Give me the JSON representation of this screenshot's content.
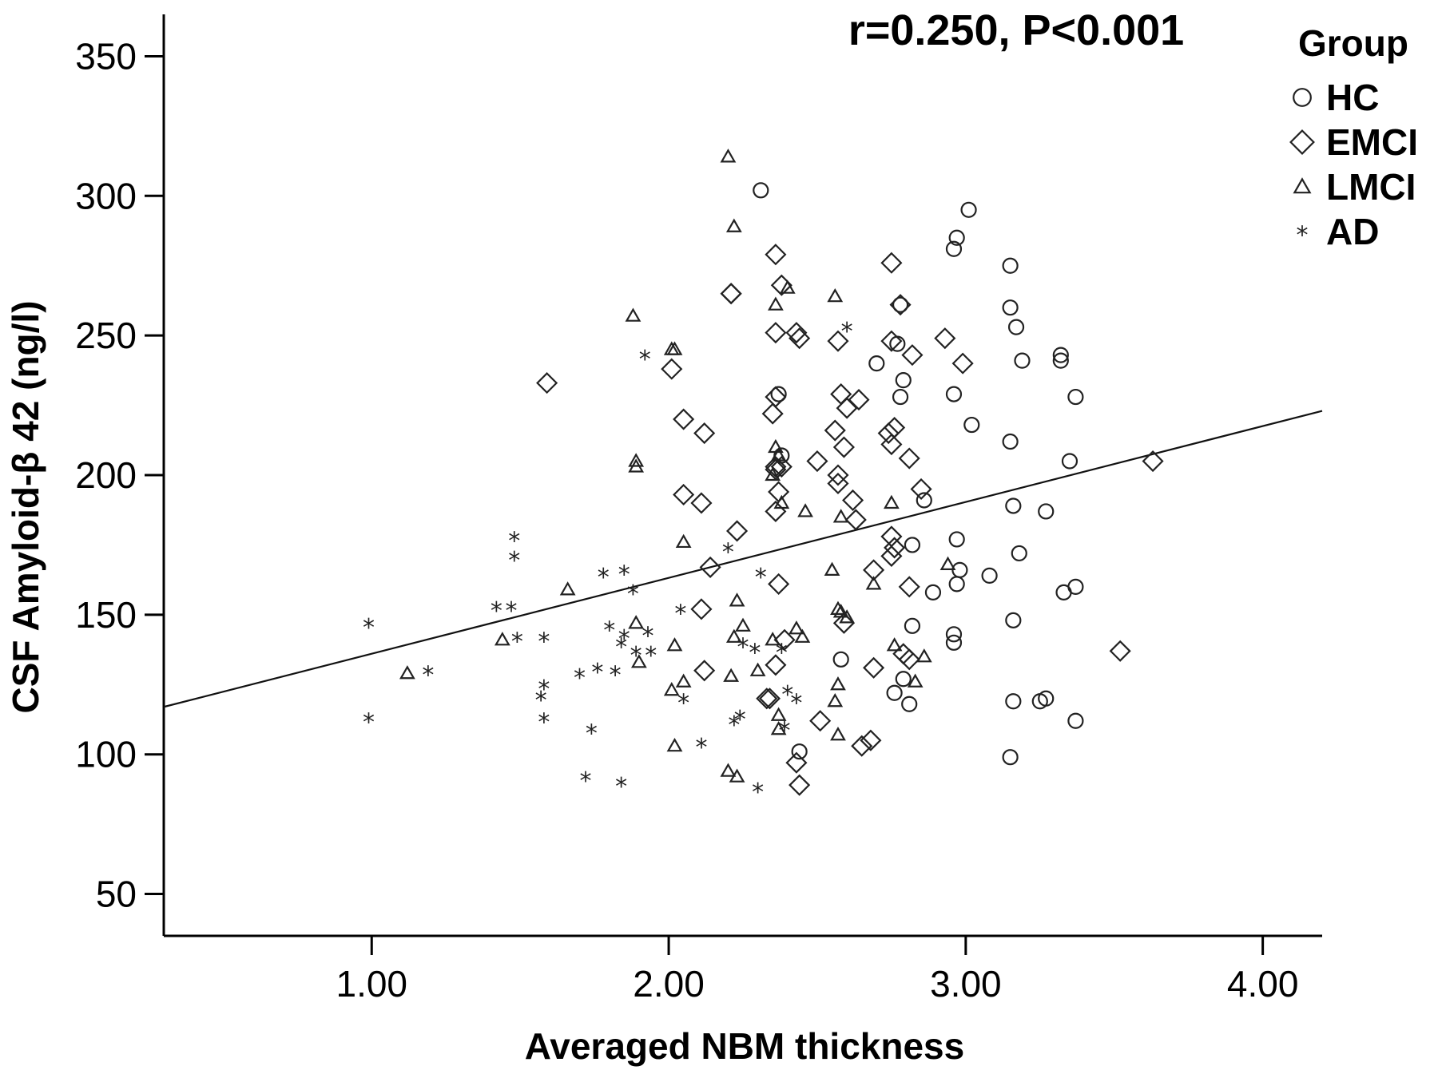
{
  "chart_data": {
    "type": "scatter",
    "title": "",
    "annotation": "r=0.250, P<0.001",
    "xlabel": "Averaged NBM thickness",
    "ylabel": "CSF Amyloid-β 42 (ng/l)",
    "xlim": [
      0.3,
      4.2
    ],
    "ylim": [
      35,
      365
    ],
    "xticks": [
      1.0,
      2.0,
      3.0,
      4.0
    ],
    "xtick_labels": [
      "1.00",
      "2.00",
      "3.00",
      "4.00"
    ],
    "yticks": [
      50,
      100,
      150,
      200,
      250,
      300,
      350
    ],
    "ytick_labels": [
      "50",
      "100",
      "150",
      "200",
      "250",
      "300",
      "350"
    ],
    "grid": false,
    "legend": {
      "title": "Group",
      "placement": "top-right"
    },
    "fit_line": {
      "x": [
        0.3,
        4.2
      ],
      "y": [
        117,
        223
      ]
    },
    "series": [
      {
        "name": "HC",
        "marker": "circle",
        "points": [
          [
            2.31,
            302
          ],
          [
            2.97,
            285
          ],
          [
            2.96,
            281
          ],
          [
            3.01,
            295
          ],
          [
            3.15,
            275
          ],
          [
            3.15,
            260
          ],
          [
            3.17,
            253
          ],
          [
            3.19,
            241
          ],
          [
            2.78,
            261
          ],
          [
            2.77,
            247
          ],
          [
            2.79,
            234
          ],
          [
            2.78,
            228
          ],
          [
            2.7,
            240
          ],
          [
            2.96,
            229
          ],
          [
            3.32,
            243
          ],
          [
            3.32,
            241
          ],
          [
            3.37,
            228
          ],
          [
            3.02,
            218
          ],
          [
            3.15,
            212
          ],
          [
            2.37,
            229
          ],
          [
            2.38,
            207
          ],
          [
            3.35,
            205
          ],
          [
            2.86,
            191
          ],
          [
            3.16,
            189
          ],
          [
            3.27,
            187
          ],
          [
            2.97,
            177
          ],
          [
            2.82,
            175
          ],
          [
            3.18,
            172
          ],
          [
            2.98,
            166
          ],
          [
            3.08,
            164
          ],
          [
            2.97,
            161
          ],
          [
            2.89,
            158
          ],
          [
            3.37,
            160
          ],
          [
            3.33,
            158
          ],
          [
            2.58,
            134
          ],
          [
            2.82,
            146
          ],
          [
            2.96,
            143
          ],
          [
            2.96,
            140
          ],
          [
            3.16,
            148
          ],
          [
            2.79,
            127
          ],
          [
            2.76,
            122
          ],
          [
            2.81,
            118
          ],
          [
            3.16,
            119
          ],
          [
            3.25,
            119
          ],
          [
            3.27,
            120
          ],
          [
            3.37,
            112
          ],
          [
            2.44,
            101
          ],
          [
            3.15,
            99
          ]
        ]
      },
      {
        "name": "EMCI",
        "marker": "diamond",
        "points": [
          [
            1.59,
            233
          ],
          [
            2.36,
            279
          ],
          [
            2.21,
            265
          ],
          [
            2.21,
            265
          ],
          [
            2.38,
            268
          ],
          [
            2.75,
            276
          ],
          [
            2.78,
            261
          ],
          [
            2.36,
            251
          ],
          [
            2.43,
            251
          ],
          [
            2.44,
            249
          ],
          [
            2.57,
            248
          ],
          [
            2.75,
            248
          ],
          [
            2.82,
            243
          ],
          [
            2.93,
            249
          ],
          [
            2.99,
            240
          ],
          [
            2.01,
            238
          ],
          [
            2.36,
            228
          ],
          [
            2.58,
            229
          ],
          [
            2.6,
            224
          ],
          [
            2.64,
            227
          ],
          [
            2.35,
            222
          ],
          [
            2.05,
            220
          ],
          [
            2.12,
            215
          ],
          [
            2.56,
            216
          ],
          [
            2.74,
            215
          ],
          [
            2.76,
            217
          ],
          [
            2.75,
            211
          ],
          [
            2.59,
            210
          ],
          [
            2.81,
            206
          ],
          [
            2.5,
            205
          ],
          [
            2.36,
            203
          ],
          [
            2.36,
            202
          ],
          [
            2.38,
            203
          ],
          [
            2.57,
            200
          ],
          [
            2.57,
            197
          ],
          [
            2.37,
            194
          ],
          [
            2.85,
            195
          ],
          [
            2.05,
            193
          ],
          [
            2.11,
            190
          ],
          [
            2.62,
            191
          ],
          [
            2.36,
            187
          ],
          [
            2.63,
            184
          ],
          [
            2.23,
            180
          ],
          [
            2.75,
            178
          ],
          [
            2.76,
            174
          ],
          [
            2.75,
            171
          ],
          [
            2.69,
            166
          ],
          [
            2.14,
            167
          ],
          [
            2.37,
            161
          ],
          [
            2.81,
            160
          ],
          [
            2.11,
            152
          ],
          [
            2.59,
            147
          ],
          [
            2.79,
            136
          ],
          [
            2.81,
            134
          ],
          [
            2.69,
            131
          ],
          [
            2.12,
            130
          ],
          [
            2.36,
            132
          ],
          [
            2.39,
            141
          ],
          [
            2.33,
            120
          ],
          [
            2.34,
            120
          ],
          [
            2.51,
            112
          ],
          [
            3.52,
            137
          ],
          [
            3.63,
            205
          ],
          [
            2.43,
            97
          ],
          [
            2.44,
            89
          ],
          [
            2.65,
            103
          ],
          [
            2.68,
            105
          ]
        ]
      },
      {
        "name": "LMCI",
        "marker": "triangle",
        "points": [
          [
            2.2,
            314
          ],
          [
            2.22,
            289
          ],
          [
            1.88,
            257
          ],
          [
            2.36,
            261
          ],
          [
            2.4,
            267
          ],
          [
            2.56,
            264
          ],
          [
            2.01,
            245
          ],
          [
            2.02,
            245
          ],
          [
            1.89,
            205
          ],
          [
            1.89,
            203
          ],
          [
            2.36,
            210
          ],
          [
            2.37,
            207
          ],
          [
            2.35,
            200
          ],
          [
            2.38,
            190
          ],
          [
            2.46,
            187
          ],
          [
            2.58,
            185
          ],
          [
            2.75,
            190
          ],
          [
            2.05,
            176
          ],
          [
            2.55,
            166
          ],
          [
            1.66,
            159
          ],
          [
            2.69,
            161
          ],
          [
            2.94,
            168
          ],
          [
            2.23,
            155
          ],
          [
            2.57,
            152
          ],
          [
            2.58,
            151
          ],
          [
            2.6,
            149
          ],
          [
            1.89,
            147
          ],
          [
            2.25,
            146
          ],
          [
            1.44,
            141
          ],
          [
            2.02,
            139
          ],
          [
            2.22,
            142
          ],
          [
            2.35,
            141
          ],
          [
            2.43,
            145
          ],
          [
            2.45,
            142
          ],
          [
            2.76,
            139
          ],
          [
            2.86,
            135
          ],
          [
            1.9,
            133
          ],
          [
            2.3,
            130
          ],
          [
            2.21,
            128
          ],
          [
            1.12,
            129
          ],
          [
            2.01,
            123
          ],
          [
            2.05,
            126
          ],
          [
            2.57,
            125
          ],
          [
            2.56,
            119
          ],
          [
            2.37,
            114
          ],
          [
            2.02,
            103
          ],
          [
            2.57,
            107
          ],
          [
            2.37,
            109
          ],
          [
            2.2,
            94
          ],
          [
            2.23,
            92
          ],
          [
            2.83,
            126
          ]
        ]
      },
      {
        "name": "AD",
        "marker": "star",
        "points": [
          [
            1.48,
            177
          ],
          [
            1.48,
            170
          ],
          [
            0.99,
            146
          ],
          [
            1.42,
            152
          ],
          [
            1.47,
            152
          ],
          [
            1.49,
            141
          ],
          [
            1.58,
            141
          ],
          [
            1.78,
            164
          ],
          [
            1.85,
            165
          ],
          [
            1.88,
            158
          ],
          [
            2.2,
            173
          ],
          [
            2.31,
            164
          ],
          [
            2.04,
            151
          ],
          [
            1.8,
            145
          ],
          [
            1.85,
            142
          ],
          [
            1.93,
            143
          ],
          [
            1.84,
            139
          ],
          [
            1.89,
            136
          ],
          [
            1.94,
            136
          ],
          [
            1.76,
            130
          ],
          [
            1.82,
            129
          ],
          [
            1.7,
            128
          ],
          [
            1.19,
            129
          ],
          [
            1.58,
            124
          ],
          [
            1.57,
            120
          ],
          [
            1.58,
            112
          ],
          [
            2.05,
            119
          ],
          [
            2.25,
            139
          ],
          [
            2.29,
            137
          ],
          [
            2.38,
            137
          ],
          [
            2.4,
            122
          ],
          [
            2.43,
            119
          ],
          [
            2.24,
            113
          ],
          [
            2.22,
            111
          ],
          [
            2.39,
            109
          ],
          [
            1.74,
            108
          ],
          [
            2.11,
            103
          ],
          [
            0.99,
            112
          ],
          [
            1.72,
            91
          ],
          [
            1.84,
            89
          ],
          [
            2.3,
            87
          ],
          [
            1.92,
            242
          ],
          [
            2.6,
            252
          ]
        ]
      }
    ]
  }
}
